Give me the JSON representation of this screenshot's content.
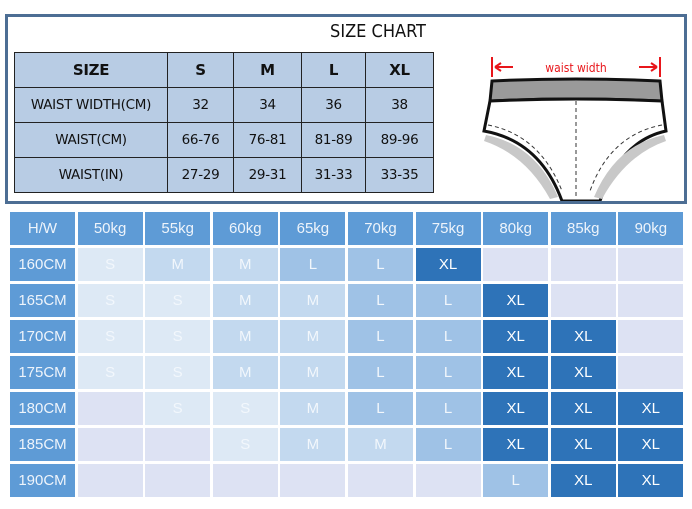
{
  "size_chart": {
    "title": "SIZE CHART",
    "headers": [
      "SIZE",
      "S",
      "M",
      "L",
      "XL"
    ],
    "rows": [
      [
        "WAIST WIDTH(CM)",
        "32",
        "34",
        "36",
        "38"
      ],
      [
        "WAIST(CM)",
        "66-76",
        "76-81",
        "81-89",
        "89-96"
      ],
      [
        "WAIST(IN)",
        "27-29",
        "29-31",
        "31-33",
        "33-35"
      ]
    ],
    "diagram_label": "waist width",
    "diagram_label_color": "#e8161b"
  },
  "hw_grid": {
    "corner": "H/W",
    "weights": [
      "50kg",
      "55kg",
      "60kg",
      "65kg",
      "70kg",
      "75kg",
      "80kg",
      "85kg",
      "90kg"
    ],
    "rows": [
      {
        "height": "160CM",
        "sizes": [
          "S",
          "M",
          "M",
          "L",
          "L",
          "XL",
          "",
          "",
          ""
        ]
      },
      {
        "height": "165CM",
        "sizes": [
          "S",
          "S",
          "M",
          "M",
          "L",
          "L",
          "XL",
          "",
          ""
        ]
      },
      {
        "height": "170CM",
        "sizes": [
          "S",
          "S",
          "M",
          "M",
          "L",
          "L",
          "XL",
          "XL",
          ""
        ]
      },
      {
        "height": "175CM",
        "sizes": [
          "S",
          "S",
          "M",
          "M",
          "L",
          "L",
          "XL",
          "XL",
          ""
        ]
      },
      {
        "height": "180CM",
        "sizes": [
          "",
          "S",
          "S",
          "M",
          "L",
          "L",
          "XL",
          "XL",
          "XL"
        ]
      },
      {
        "height": "185CM",
        "sizes": [
          "",
          "",
          "S",
          "M",
          "M",
          "L",
          "XL",
          "XL",
          "XL"
        ]
      },
      {
        "height": "190CM",
        "sizes": [
          "",
          "",
          "",
          "",
          "",
          "",
          "L",
          "XL",
          "XL"
        ]
      }
    ],
    "colors": {
      "header": "#5e9bd6",
      "S": "#dde9f5",
      "M": "#c3d9ef",
      "L": "#9fc2e6",
      "XL": "#2e73b8",
      "empty": "#dde2f3"
    }
  }
}
